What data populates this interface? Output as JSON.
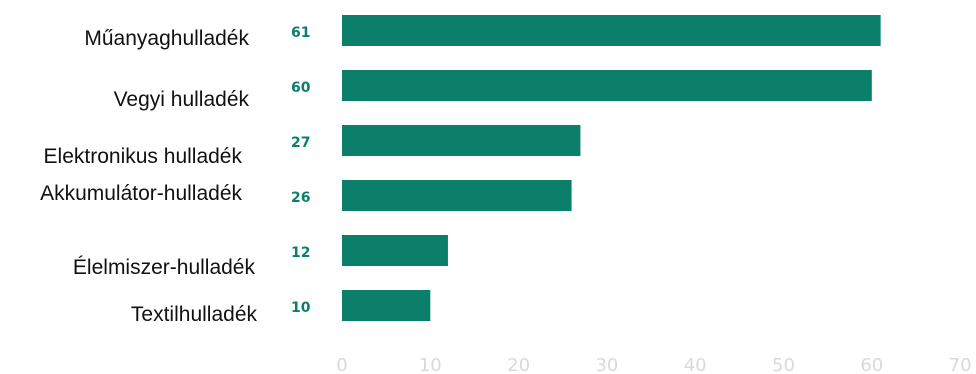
{
  "chart_data": {
    "type": "bar",
    "orientation": "horizontal",
    "categories": [
      "Műanyaghulladék",
      "Vegyi hulladék",
      "Elektronikus hulladék",
      "Akkumulátor-hulladék",
      "Élelmiszer-hulladék",
      "Textilhulladék"
    ],
    "values": [
      61,
      60,
      27,
      26,
      12,
      10
    ],
    "value_labels": [
      "61",
      "60",
      "27",
      "26",
      "12",
      "10"
    ],
    "xlim": [
      0,
      70
    ],
    "x_ticks": [
      "0",
      "10",
      "20",
      "30",
      "40",
      "50",
      "60",
      "70"
    ],
    "grid": false,
    "legend": "none",
    "bar_color": "#0b7f6a",
    "value_label_color": "#0b7f6a",
    "tick_color": "#d9d9d9"
  }
}
